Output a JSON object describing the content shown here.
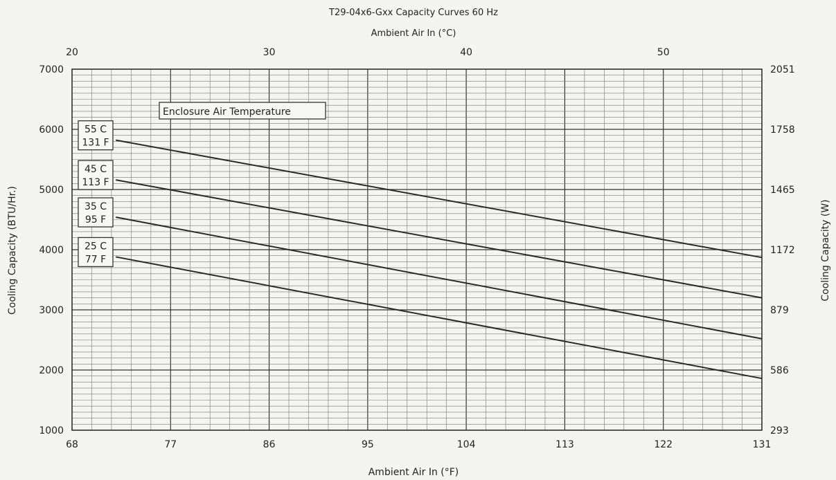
{
  "chart_data": {
    "type": "line",
    "title": "T29-04x6-Gxx Capacity Curves 60 Hz",
    "top_xlabel": "Ambient Air In (°C)",
    "xlabel": "Ambient Air In (°F)",
    "ylabel": "Cooling Capacity (BTU/Hr.)",
    "ylabel_right": "Cooling Capacity (W)",
    "xlim": [
      68,
      131
    ],
    "ylim": [
      1000,
      7000
    ],
    "grid": true,
    "x_ticks": [
      "68",
      "77",
      "86",
      "95",
      "104",
      "113",
      "122",
      "131"
    ],
    "y_ticks": [
      "1000",
      "2000",
      "3000",
      "4000",
      "5000",
      "6000",
      "7000"
    ],
    "top_x_ticks": [
      {
        "celsius": 20,
        "label": "20"
      },
      {
        "celsius": 30,
        "label": "30"
      },
      {
        "celsius": 40,
        "label": "40"
      },
      {
        "celsius": 50,
        "label": "50"
      }
    ],
    "right_y_ticks": [
      {
        "btu": 1000,
        "label": "293"
      },
      {
        "btu": 2000,
        "label": "586"
      },
      {
        "btu": 3000,
        "label": "879"
      },
      {
        "btu": 4000,
        "label": "1172"
      },
      {
        "btu": 5000,
        "label": "1465"
      },
      {
        "btu": 6000,
        "label": "1758"
      },
      {
        "btu": 7000,
        "label": "2051"
      }
    ],
    "legend_title": "Enclosure Air Temperature",
    "series": [
      {
        "name": "55 C\n131 F",
        "label_lines": [
          "55 C",
          "131 F"
        ],
        "x": [
          72,
          131
        ],
        "y": [
          5820,
          3870
        ]
      },
      {
        "name": "45 C\n113 F",
        "label_lines": [
          "45 C",
          "113 F"
        ],
        "x": [
          72,
          131
        ],
        "y": [
          5160,
          3200
        ]
      },
      {
        "name": "35 C\n95 F",
        "label_lines": [
          "35 C",
          "95 F"
        ],
        "x": [
          72,
          131
        ],
        "y": [
          4540,
          2520
        ]
      },
      {
        "name": "25 C\n77 F",
        "label_lines": [
          "25 C",
          "77 F"
        ],
        "x": [
          72,
          131
        ],
        "y": [
          3880,
          1860
        ]
      }
    ]
  }
}
